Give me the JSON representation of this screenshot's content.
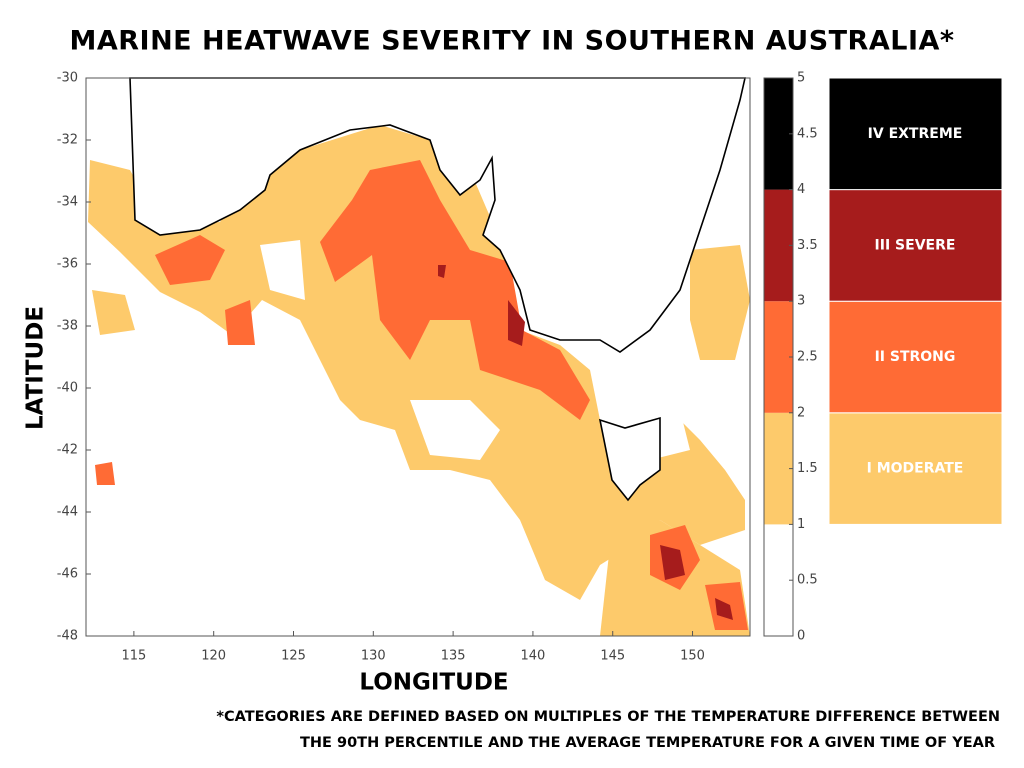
{
  "chart_data": {
    "type": "heatmap-map",
    "title": "MARINE HEATWAVE SEVERITY IN SOUTHERN AUSTRALIA*",
    "x_label": "LONGITUDE",
    "y_label": "LATITUDE",
    "xlim": [
      112,
      153.6
    ],
    "ylim": [
      -48,
      -30
    ],
    "xticks": [
      115,
      120,
      125,
      130,
      135,
      140,
      145,
      150
    ],
    "yticks": [
      -30,
      -32,
      -34,
      -36,
      -38,
      -40,
      -42,
      -44,
      -46,
      -48
    ],
    "colorbar": {
      "lim": [
        0,
        5
      ],
      "ticks": [
        0,
        0.5,
        1,
        1.5,
        2,
        2.5,
        3,
        3.5,
        4,
        4.5,
        5
      ],
      "bands": [
        {
          "from": 0,
          "to": 1,
          "color": "#ffffff"
        },
        {
          "from": 1,
          "to": 2,
          "color": "#fdca6b",
          "label": "I MODERATE"
        },
        {
          "from": 2,
          "to": 3,
          "color": "#ff6b35",
          "label": "II STRONG"
        },
        {
          "from": 3,
          "to": 4,
          "color": "#a61c1c",
          "label": "III SEVERE"
        },
        {
          "from": 4,
          "to": 5,
          "color": "#000000",
          "label": "IV EXTREME"
        }
      ]
    },
    "footnote": [
      "*CATEGORIES ARE DEFINED BASED ON MULTIPLES OF THE TEMPERATURE DIFFERENCE BETWEEN",
      "THE 90TH PERCENTILE AND THE AVERAGE TEMPERATURE FOR A GIVEN TIME OF YEAR"
    ]
  }
}
